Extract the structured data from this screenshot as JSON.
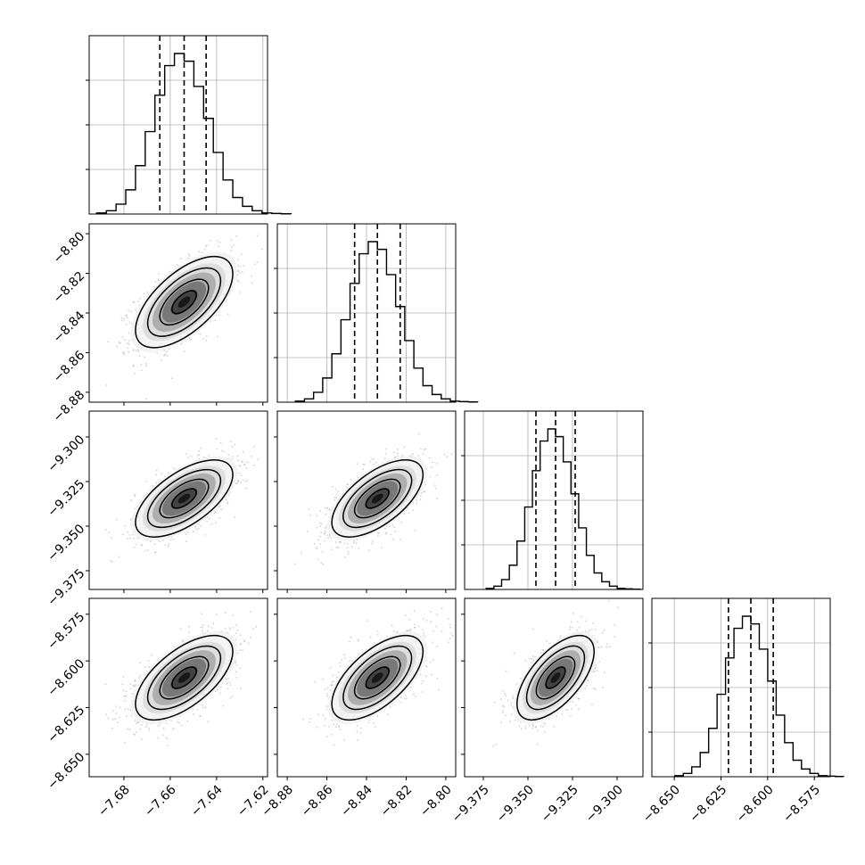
{
  "chart_data": {
    "type": "corner",
    "grid": true,
    "params": [
      {
        "lim": [
          -7.695,
          -7.618
        ],
        "ticks": [
          -7.68,
          -7.66,
          -7.64,
          -7.62
        ],
        "tick_labels": [
          "−7.68",
          "−7.66",
          "−7.64",
          "−7.62"
        ],
        "mean": -7.654,
        "sd": 0.0105,
        "quantiles": [
          -7.6645,
          -7.654,
          -7.6445
        ]
      },
      {
        "lim": [
          -8.885,
          -8.795
        ],
        "ticks": [
          -8.88,
          -8.86,
          -8.84,
          -8.82,
          -8.8
        ],
        "tick_labels": [
          "−8.88",
          "−8.86",
          "−8.84",
          "−8.82",
          "−8.80"
        ],
        "mean": -8.8345,
        "sd": 0.0115,
        "quantiles": [
          -8.846,
          -8.8345,
          -8.823
        ]
      },
      {
        "lim": [
          -9.3855,
          -9.2855
        ],
        "ticks": [
          -9.375,
          -9.35,
          -9.325,
          -9.3
        ],
        "tick_labels": [
          "−9.375",
          "−9.350",
          "−9.325",
          "−9.300"
        ],
        "mean": -9.3345,
        "sd": 0.0108,
        "quantiles": [
          -9.3455,
          -9.3345,
          -9.3235
        ]
      },
      {
        "lim": [
          -8.662,
          -8.5665
        ],
        "ticks": [
          -8.65,
          -8.625,
          -8.6,
          -8.575
        ],
        "tick_labels": [
          "−8.650",
          "−8.625",
          "−8.600",
          "−8.575"
        ],
        "mean": -8.609,
        "sd": 0.0113,
        "quantiles": [
          -8.621,
          -8.609,
          -8.597
        ]
      }
    ],
    "hist_bins": 20,
    "hist_probs": [
      0.001,
      0.003,
      0.009,
      0.022,
      0.044,
      0.075,
      0.108,
      0.135,
      0.146,
      0.139,
      0.116,
      0.087,
      0.056,
      0.031,
      0.015,
      0.007,
      0.003,
      0.001,
      0.0005,
      0.0002
    ],
    "hist_peak_frac": 0.9,
    "correlation": 0.62,
    "contour_levels_sigma": [
      0.5,
      1.0,
      1.5,
      2.0
    ],
    "points_per_panel": 1400
  },
  "colors": {
    "line": "#000000",
    "grid": "#b0b0b0",
    "points": "#9a9a9a"
  }
}
